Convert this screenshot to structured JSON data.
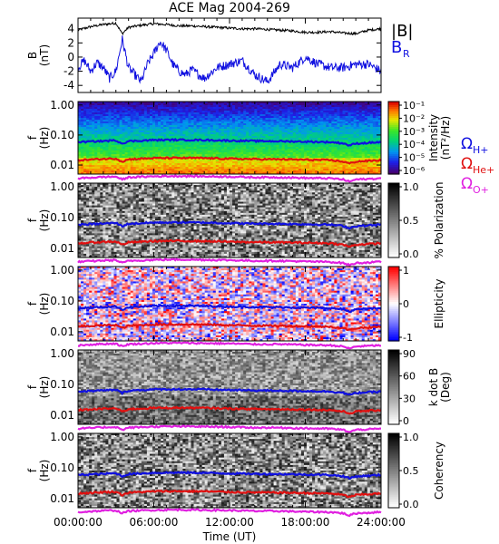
{
  "title": "ACE Mag 2004-269",
  "xlabel": "Time (UT)",
  "x_ticks": [
    "00:00:00",
    "06:00:00",
    "12:00:00",
    "18:00:00",
    "24:00:00"
  ],
  "chart_data": [
    {
      "type": "line",
      "panel": "magnetic-field",
      "ylabel_line1": "B",
      "ylabel_line2": "(nT)",
      "y_ticks": [
        "4",
        "2",
        "0",
        "-2",
        "-4"
      ],
      "ylim": [
        -5,
        5.5
      ],
      "xlim_hours": [
        0,
        24
      ],
      "series": [
        {
          "name": "|B|",
          "color": "#000000",
          "x_hours": [
            0,
            1,
            2,
            3,
            3.5,
            4,
            5,
            6,
            7,
            8,
            9,
            10,
            11,
            12,
            13,
            14,
            15,
            16,
            17,
            18,
            19,
            20,
            21,
            22,
            23,
            24
          ],
          "values": [
            3.8,
            4.3,
            4.6,
            4.8,
            3.3,
            4.2,
            4.5,
            4.7,
            4.6,
            4.4,
            4.4,
            4.3,
            4.2,
            4.1,
            4.0,
            4.0,
            3.9,
            3.8,
            3.7,
            3.5,
            3.5,
            3.6,
            3.4,
            3.3,
            3.8,
            4.0
          ]
        },
        {
          "name": "BR",
          "label_main": "B",
          "label_sub": "R",
          "color": "#1010e0",
          "x_hours": [
            0,
            0.5,
            1,
            1.5,
            2,
            2.5,
            3,
            3.5,
            4,
            4.5,
            5,
            5.5,
            6,
            6.5,
            7,
            7.5,
            8,
            8.5,
            9,
            10,
            11,
            12,
            13,
            14,
            15,
            16,
            17,
            18,
            19,
            20,
            21,
            22,
            23,
            24
          ],
          "values": [
            -1.5,
            -0.5,
            -2.0,
            -0.8,
            -1.5,
            -3.0,
            -2.0,
            2.5,
            -1.5,
            -2.5,
            -3.5,
            -1.0,
            0.5,
            2.2,
            1.0,
            -1.0,
            -2.0,
            -2.5,
            -1.8,
            -3.0,
            -1.5,
            -1.0,
            -0.5,
            -2.5,
            -3.5,
            -1.0,
            -1.5,
            0.0,
            -1.0,
            -1.5,
            -1.5,
            -1.0,
            -1.0,
            -2.0
          ]
        }
      ]
    },
    {
      "type": "heatmap",
      "panel": "intensity",
      "ylabel_line1": "f",
      "ylabel_line2": "(Hz)",
      "y_ticks": [
        "1.00",
        "0.10",
        "0.01"
      ],
      "ylim_hz": [
        0.005,
        1.3
      ],
      "yscale": "log",
      "colorbar": {
        "colorscale": "rainbow",
        "label_line1": "Intensity",
        "label_line2": "(nT²/Hz)",
        "ticks": [
          "10⁻¹",
          "10⁻²",
          "10⁻³",
          "10⁻⁴",
          "10⁻⁵",
          "10⁻⁶"
        ]
      },
      "right_legend": [
        {
          "main": "Ω",
          "sub": "H+",
          "color": "#1010e0"
        },
        {
          "main": "Ω",
          "sub": "He+",
          "color": "#e01010"
        },
        {
          "main": "Ω",
          "sub": "O+",
          "color": "#e020e0"
        }
      ]
    },
    {
      "type": "heatmap",
      "panel": "polarization",
      "ylabel_line1": "f",
      "ylabel_line2": "(Hz)",
      "y_ticks": [
        "1.00",
        "0.10",
        "0.01"
      ],
      "yscale": "log",
      "colorbar": {
        "colorscale": "grayscale",
        "label_line1": "% Polarization",
        "label_line2": "",
        "ticks": [
          "1.0",
          "0.5",
          "0.0"
        ]
      }
    },
    {
      "type": "heatmap",
      "panel": "ellipticity",
      "ylabel_line1": "f",
      "ylabel_line2": "(Hz)",
      "y_ticks": [
        "1.00",
        "0.10",
        "0.01"
      ],
      "yscale": "log",
      "colorbar": {
        "colorscale": "blue-white-red",
        "label_line1": "Ellipticity",
        "label_line2": "",
        "ticks": [
          "1",
          "0",
          "-1"
        ]
      }
    },
    {
      "type": "heatmap",
      "panel": "wave-normal-angle",
      "ylabel_line1": "f",
      "ylabel_line2": "(Hz)",
      "y_ticks": [
        "1.00",
        "0.10",
        "0.01"
      ],
      "yscale": "log",
      "colorbar": {
        "colorscale": "grayscale",
        "label_line1": "k dot B",
        "label_line2": "(Deg)",
        "ticks": [
          "90",
          "60",
          "30",
          "0"
        ]
      }
    },
    {
      "type": "heatmap",
      "panel": "coherency",
      "ylabel_line1": "f",
      "ylabel_line2": "(Hz)",
      "y_ticks": [
        "1.00",
        "0.10",
        "0.01"
      ],
      "yscale": "log",
      "colorbar": {
        "colorscale": "grayscale",
        "label_line1": "Coherency",
        "label_line2": "",
        "ticks": [
          "1.0",
          "0.5",
          "0.0"
        ]
      }
    }
  ],
  "gyrofrequency_lines": {
    "x_hours": [
      0,
      2,
      3,
      3.5,
      4,
      6,
      8,
      10,
      12,
      14,
      16,
      18,
      20,
      21,
      21.5,
      22,
      24
    ],
    "H+_hz": [
      0.058,
      0.063,
      0.066,
      0.052,
      0.062,
      0.068,
      0.069,
      0.068,
      0.065,
      0.063,
      0.062,
      0.06,
      0.058,
      0.053,
      0.045,
      0.052,
      0.058
    ],
    "He+_hz": [
      0.0145,
      0.016,
      0.0165,
      0.013,
      0.0155,
      0.017,
      0.0172,
      0.017,
      0.0162,
      0.0157,
      0.0155,
      0.015,
      0.0145,
      0.013,
      0.0112,
      0.013,
      0.0145
    ],
    "O+_hz": [
      0.0036,
      0.004,
      0.0041,
      0.0033,
      0.0039,
      0.0042,
      0.0043,
      0.0042,
      0.0041,
      0.0039,
      0.0039,
      0.0037,
      0.0036,
      0.0033,
      0.0028,
      0.0033,
      0.0036
    ]
  },
  "colors": {
    "H+": "#1010e0",
    "He+": "#e01010",
    "O+": "#e020e0",
    "axis": "#000000"
  }
}
